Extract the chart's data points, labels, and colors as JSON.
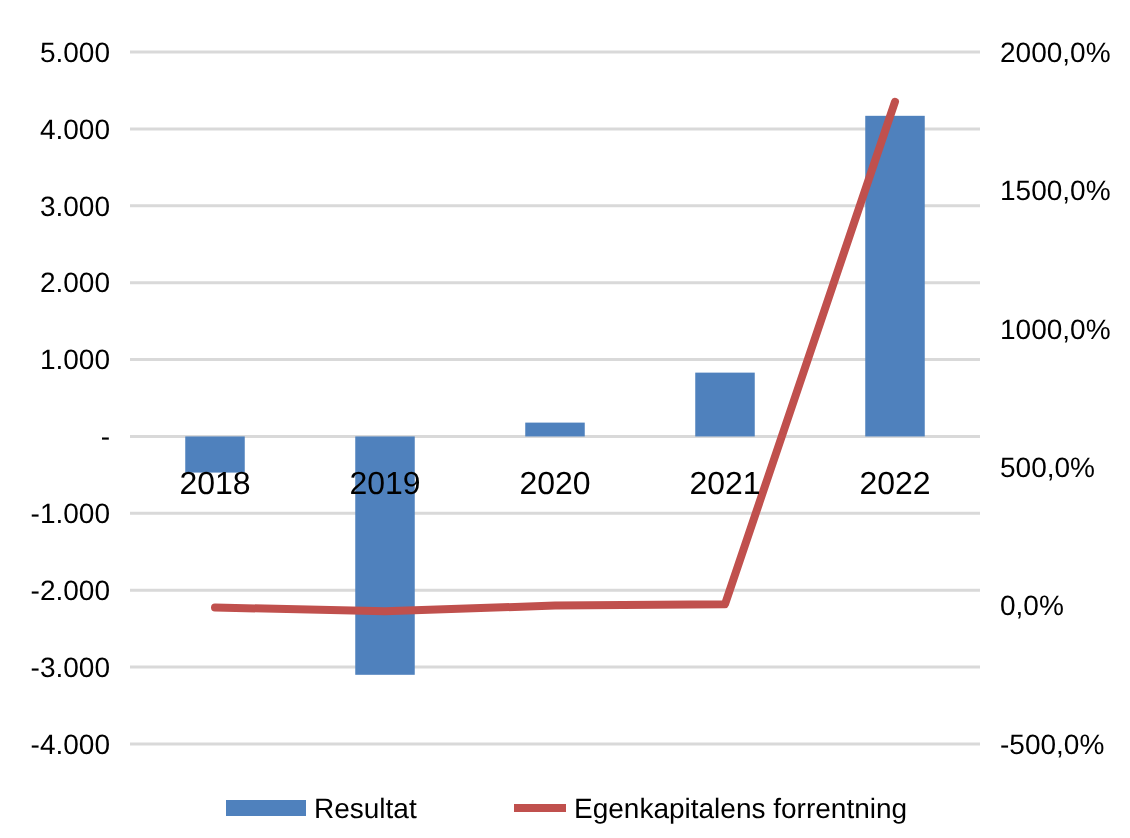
{
  "chart_data": {
    "type": "bar",
    "categories": [
      "2018",
      "2019",
      "2020",
      "2021",
      "2022"
    ],
    "series": [
      {
        "name": "Resultat",
        "color": "#4f81bd",
        "values": [
          -470,
          -3100,
          180,
          830,
          4170
        ]
      },
      {
        "name": "Egenkapitalens forrentning",
        "type": "line",
        "axis": "y2",
        "color": "#c0504d",
        "values": [
          -7,
          -20,
          0,
          5,
          1820
        ]
      }
    ],
    "ylim": [
      -4000,
      5000
    ],
    "yticks": [
      {
        "value": -4000,
        "label": "-4.000"
      },
      {
        "value": -3000,
        "label": "-3.000"
      },
      {
        "value": -2000,
        "label": "-2.000"
      },
      {
        "value": -1000,
        "label": "-1.000"
      },
      {
        "value": 0,
        "label": "-"
      },
      {
        "value": 1000,
        "label": "1.000"
      },
      {
        "value": 2000,
        "label": "2.000"
      },
      {
        "value": 3000,
        "label": "3.000"
      },
      {
        "value": 4000,
        "label": "4.000"
      },
      {
        "value": 5000,
        "label": "5.000"
      }
    ],
    "y2lim": [
      -500,
      2000
    ],
    "y2ticks": [
      {
        "value": -500,
        "label": "-500,0%"
      },
      {
        "value": 0,
        "label": "0,0%"
      },
      {
        "value": 500,
        "label": "500,0%"
      },
      {
        "value": 1000,
        "label": "1000,0%"
      },
      {
        "value": 1500,
        "label": "1500,0%"
      },
      {
        "value": 2000,
        "label": "2000,0%"
      }
    ],
    "grid": "y",
    "legend": "bottom"
  }
}
